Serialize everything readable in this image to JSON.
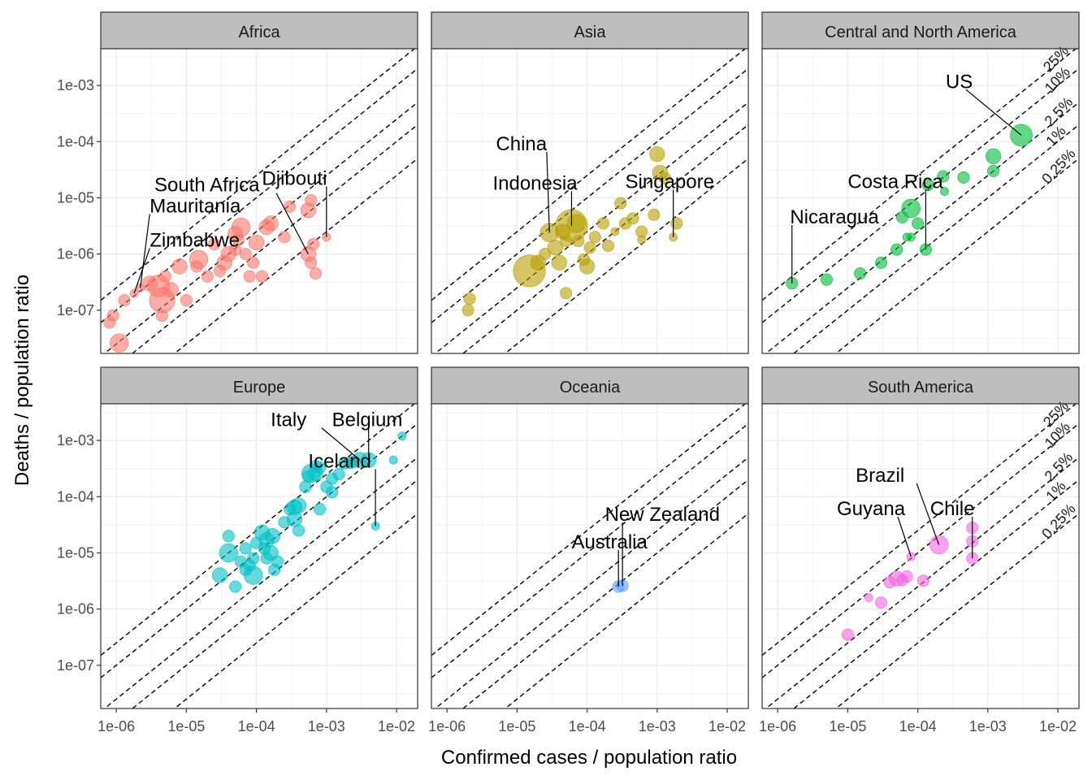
{
  "chart_data": {
    "type": "scatter",
    "facet_by": "continent",
    "xlabel": "Confirmed cases / population ratio",
    "ylabel": "Deaths / population ratio",
    "x_scale": "log10",
    "y_scale": "log10",
    "xlim": [
      6e-07,
      0.02
    ],
    "ylim": [
      1.7e-08,
      0.0045
    ],
    "x_ticks": [
      {
        "value": 1e-06,
        "label": "1e-06"
      },
      {
        "value": 1e-05,
        "label": "1e-05"
      },
      {
        "value": 0.0001,
        "label": "1e-04"
      },
      {
        "value": 0.001,
        "label": "1e-03"
      },
      {
        "value": 0.01,
        "label": "1e-02"
      }
    ],
    "y_ticks": [
      {
        "value": 1e-07,
        "label": "1e-07"
      },
      {
        "value": 1e-06,
        "label": "1e-06"
      },
      {
        "value": 1e-05,
        "label": "1e-05"
      },
      {
        "value": 0.0001,
        "label": "1e-04"
      },
      {
        "value": 0.001,
        "label": "1e-03"
      }
    ],
    "reference_lines": {
      "style": "dashed",
      "description_ratios": [
        0.25,
        0.1,
        0.025,
        0.01,
        0.0025
      ],
      "labels": [
        "25%",
        "10%",
        "2.5%",
        "1%",
        "0.25%"
      ],
      "labeled_panels": [
        "Central and North America",
        "South America"
      ]
    },
    "grid": true,
    "legend": "none",
    "panels": [
      {
        "title": "Africa",
        "color": "#F8766D",
        "points": [
          [
            8e-07,
            6e-08,
            2
          ],
          [
            9e-07,
            8e-08,
            2
          ],
          [
            1.1e-06,
            2.6e-08,
            4
          ],
          [
            1.3e-06,
            1.5e-07,
            2
          ],
          [
            1.8e-06,
            2e-07,
            1
          ],
          [
            2.2e-06,
            2.5e-07,
            1
          ],
          [
            3e-06,
            3e-07,
            3
          ],
          [
            4e-06,
            2.7e-07,
            5
          ],
          [
            4.5e-06,
            1.5e-07,
            6
          ],
          [
            4.5e-06,
            8e-08,
            2
          ],
          [
            5e-06,
            4e-07,
            2
          ],
          [
            6e-06,
            2.3e-07,
            3
          ],
          [
            8e-06,
            6e-07,
            3
          ],
          [
            1e-05,
            1.5e-07,
            2
          ],
          [
            1.4e-05,
            6e-07,
            2
          ],
          [
            1.5e-05,
            8e-07,
            4
          ],
          [
            2e-05,
            4e-07,
            2
          ],
          [
            2.5e-05,
            1.5e-06,
            2
          ],
          [
            3e-05,
            5e-07,
            2
          ],
          [
            3.5e-05,
            7e-07,
            3
          ],
          [
            4e-05,
            1e-06,
            3
          ],
          [
            5e-05,
            1.2e-06,
            2
          ],
          [
            5e-05,
            2.3e-06,
            3
          ],
          [
            5.5e-05,
            1.8e-06,
            2
          ],
          [
            6e-05,
            3e-06,
            4
          ],
          [
            7e-05,
            1e-06,
            2
          ],
          [
            8e-05,
            4e-07,
            2
          ],
          [
            9e-05,
            7e-07,
            2
          ],
          [
            0.0001,
            1.6e-06,
            3
          ],
          [
            0.00012,
            4e-07,
            2
          ],
          [
            0.00014,
            3e-06,
            3
          ],
          [
            0.00016,
            3.5e-06,
            3
          ],
          [
            0.00025,
            2e-06,
            2
          ],
          [
            0.0003,
            7e-06,
            2
          ],
          [
            0.0006,
            9e-06,
            2
          ],
          [
            0.00055,
            6e-06,
            3
          ],
          [
            0.00055,
            1e-06,
            3
          ],
          [
            0.00065,
            1.5e-06,
            2
          ],
          [
            0.0007,
            4.5e-07,
            2
          ],
          [
            0.0006,
            7e-07,
            2
          ],
          [
            0.001,
            2e-06,
            1
          ]
        ],
        "labels": [
          {
            "text": "South Africa",
            "anchor": [
              0.00055,
              1e-06
            ],
            "x": 3.5e-06,
            "y": 1.3e-05
          },
          {
            "text": "Djibouti",
            "anchor": [
              0.001,
              2e-06
            ],
            "x": 0.00012,
            "y": 1.7e-05
          },
          {
            "text": "Mauritania",
            "anchor": [
              2.2e-06,
              2.5e-07
            ],
            "x": 3e-06,
            "y": 5.5e-06
          },
          {
            "text": "Zimbabwe",
            "anchor": [
              1.8e-06,
              2e-07
            ],
            "x": 3e-06,
            "y": 1.35e-06
          }
        ]
      },
      {
        "title": "Asia",
        "color": "#B79F00",
        "points": [
          [
            2e-06,
            1e-07,
            2
          ],
          [
            2.1e-06,
            1.6e-07,
            2
          ],
          [
            1.5e-05,
            5e-07,
            8
          ],
          [
            2e-05,
            7e-07,
            3
          ],
          [
            2.5e-05,
            1e-06,
            2
          ],
          [
            2.9e-05,
            2.4e-06,
            4
          ],
          [
            3.5e-05,
            1.3e-06,
            3
          ],
          [
            4e-05,
            7e-07,
            3
          ],
          [
            4.5e-05,
            2.5e-06,
            3
          ],
          [
            5e-05,
            1.7e-06,
            2
          ],
          [
            5e-05,
            2e-07,
            2
          ],
          [
            6e-05,
            3.2e-06,
            8
          ],
          [
            7e-05,
            3.5e-06,
            4
          ],
          [
            7.5e-05,
            1.7e-06,
            2
          ],
          [
            9e-05,
            8e-07,
            2
          ],
          [
            0.0001,
            6e-07,
            3
          ],
          [
            0.00011,
            1.3e-06,
            2
          ],
          [
            0.00013,
            2e-06,
            2
          ],
          [
            0.00017,
            3.5e-06,
            2
          ],
          [
            0.0002,
            1.4e-06,
            2
          ],
          [
            0.00025,
            2.5e-06,
            1
          ],
          [
            0.0003,
            8e-06,
            2
          ],
          [
            0.00035,
            3.5e-06,
            2
          ],
          [
            0.00045,
            4.3e-06,
            2
          ],
          [
            0.0006,
            2.5e-06,
            2
          ],
          [
            0.0006,
            1.8e-06,
            1
          ],
          [
            0.0009,
            5e-06,
            2
          ],
          [
            0.001,
            6e-05,
            3
          ],
          [
            0.0011,
            2.8e-05,
            3
          ],
          [
            0.0013,
            2.2e-05,
            2
          ],
          [
            0.0017,
            2e-06,
            1
          ],
          [
            0.0019,
            3.5e-06,
            2
          ]
        ],
        "labels": [
          {
            "text": "China",
            "anchor": [
              2.9e-05,
              2.4e-06
            ],
            "x": 5e-06,
            "y": 7e-05
          },
          {
            "text": "Indonesia",
            "anchor": [
              6e-05,
              3.2e-06
            ],
            "x": 4.5e-06,
            "y": 1.4e-05
          },
          {
            "text": "Singapore",
            "anchor": [
              0.0017,
              2e-06
            ],
            "x": 0.00035,
            "y": 1.5e-05
          }
        ]
      },
      {
        "title": "Central and North America",
        "color": "#00BA38",
        "points": [
          [
            1.6e-06,
            3e-07,
            2
          ],
          [
            5e-06,
            3.5e-07,
            2
          ],
          [
            1.5e-05,
            4.5e-07,
            2
          ],
          [
            3e-05,
            7e-07,
            2
          ],
          [
            5e-05,
            1.2e-06,
            2
          ],
          [
            6e-05,
            4.5e-06,
            2
          ],
          [
            7e-05,
            2e-06,
            1
          ],
          [
            8e-05,
            6.5e-06,
            4
          ],
          [
            8e-05,
            2e-06,
            1
          ],
          [
            0.0001,
            3.5e-06,
            2
          ],
          [
            0.00013,
            1.2e-06,
            2
          ],
          [
            0.00014,
            1.7e-05,
            2
          ],
          [
            0.00023,
            2.4e-05,
            2
          ],
          [
            0.00024,
            1.3e-05,
            1
          ],
          [
            0.00045,
            2.3e-05,
            2
          ],
          [
            0.0012,
            3e-05,
            2
          ],
          [
            0.0012,
            5.5e-05,
            3
          ],
          [
            0.003,
            0.00013,
            5
          ]
        ],
        "labels": [
          {
            "text": "US",
            "anchor": [
              0.003,
              0.00013
            ],
            "x": 0.00025,
            "y": 0.0009
          },
          {
            "text": "Costa Rica",
            "anchor": [
              0.00013,
              1.2e-06
            ],
            "x": 1e-05,
            "y": 1.5e-05
          },
          {
            "text": "Nicaragua",
            "anchor": [
              1.6e-06,
              3e-07
            ],
            "x": 1.5e-06,
            "y": 3.5e-06
          }
        ]
      },
      {
        "title": "Europe",
        "color": "#00BFC4",
        "points": [
          [
            3e-05,
            4e-06,
            3
          ],
          [
            4e-05,
            2e-05,
            2
          ],
          [
            4e-05,
            1e-05,
            4
          ],
          [
            5e-05,
            2.5e-06,
            2
          ],
          [
            6e-05,
            7e-06,
            2
          ],
          [
            7e-05,
            1.2e-05,
            2
          ],
          [
            7e-05,
            5e-06,
            2
          ],
          [
            8e-05,
            6e-06,
            2
          ],
          [
            9e-05,
            4e-06,
            4
          ],
          [
            9e-05,
            8e-06,
            2
          ],
          [
            0.0001,
            1.5e-05,
            2
          ],
          [
            0.00012,
            2.3e-05,
            3
          ],
          [
            0.00013,
            1.2e-05,
            2
          ],
          [
            0.00014,
            1.7e-05,
            3
          ],
          [
            0.00014,
            8e-06,
            2
          ],
          [
            0.00016,
            1e-05,
            3
          ],
          [
            0.00017,
            2e-05,
            3
          ],
          [
            0.00018,
            5e-06,
            2
          ],
          [
            0.0002,
            7e-06,
            2
          ],
          [
            0.00025,
            3.5e-05,
            2
          ],
          [
            0.0003,
            6e-05,
            2
          ],
          [
            0.00035,
            4e-05,
            3
          ],
          [
            0.00035,
            6.5e-05,
            3
          ],
          [
            0.0004,
            2.5e-05,
            2
          ],
          [
            0.0004,
            7e-05,
            3
          ],
          [
            0.0005,
            0.00015,
            2
          ],
          [
            0.00055,
            0.00023,
            2
          ],
          [
            0.0006,
            0.00026,
            4
          ],
          [
            0.0007,
            0.00026,
            3
          ],
          [
            0.0007,
            0.00035,
            2
          ],
          [
            0.0008,
            0.00033,
            2
          ],
          [
            0.0008,
            6e-05,
            2
          ],
          [
            0.001,
            0.00015,
            2
          ],
          [
            0.0012,
            0.00012,
            2
          ],
          [
            0.0012,
            0.00021,
            2
          ],
          [
            0.0015,
            0.00025,
            2
          ],
          [
            0.0018,
            0.00039,
            2
          ],
          [
            0.0022,
            0.0004,
            2
          ],
          [
            0.0025,
            0.00042,
            2
          ],
          [
            0.003,
            0.00045,
            3
          ],
          [
            0.004,
            0.00045,
            3
          ],
          [
            0.005,
            3e-05,
            1
          ],
          [
            0.009,
            0.00045,
            1
          ],
          [
            0.012,
            0.0012,
            1
          ]
        ],
        "labels": [
          {
            "text": "Italy",
            "anchor": [
              0.003,
              0.00045
            ],
            "x": 0.00016,
            "y": 0.0018
          },
          {
            "text": "Belgium",
            "anchor": [
              0.004,
              0.00045
            ],
            "x": 0.0012,
            "y": 0.0018
          },
          {
            "text": "Iceland",
            "anchor": [
              0.005,
              3e-05
            ],
            "x": 0.00055,
            "y": 0.00033
          }
        ]
      },
      {
        "title": "Oceania",
        "color": "#619CFF",
        "points": [
          [
            0.00028,
            2.5e-06,
            2
          ],
          [
            0.00032,
            2.6e-06,
            2
          ]
        ],
        "labels": [
          {
            "text": "New Zealand",
            "anchor": [
              0.00032,
              2.6e-06
            ],
            "x": 0.00018,
            "y": 3.7e-05
          },
          {
            "text": "Australia",
            "anchor": [
              0.00028,
              2.5e-06
            ],
            "x": 6e-05,
            "y": 1.2e-05
          }
        ]
      },
      {
        "title": "South America",
        "color": "#F564E3",
        "points": [
          [
            1e-05,
            3.5e-07,
            2
          ],
          [
            2e-05,
            1.6e-06,
            1
          ],
          [
            3e-05,
            1.3e-06,
            2
          ],
          [
            4e-05,
            3e-06,
            2
          ],
          [
            5e-05,
            3.5e-06,
            3
          ],
          [
            6e-05,
            3.3e-06,
            2
          ],
          [
            7e-05,
            3.8e-06,
            2
          ],
          [
            8e-05,
            8.6e-06,
            1
          ],
          [
            0.00012,
            3.2e-06,
            2
          ],
          [
            0.0002,
            1.4e-05,
            4
          ],
          [
            0.0006,
            8e-06,
            2
          ],
          [
            0.0006,
            1.6e-05,
            2
          ],
          [
            0.0006,
            2.8e-05,
            2
          ]
        ],
        "labels": [
          {
            "text": "Brazil",
            "anchor": [
              0.0002,
              1.4e-05
            ],
            "x": 1.3e-05,
            "y": 0.000185
          },
          {
            "text": "Guyana",
            "anchor": [
              8e-05,
              8.6e-06
            ],
            "x": 7e-06,
            "y": 4.7e-05
          },
          {
            "text": "Chile",
            "anchor": [
              0.0006,
              8e-06
            ],
            "x": 0.00015,
            "y": 4.7e-05
          }
        ]
      }
    ]
  }
}
